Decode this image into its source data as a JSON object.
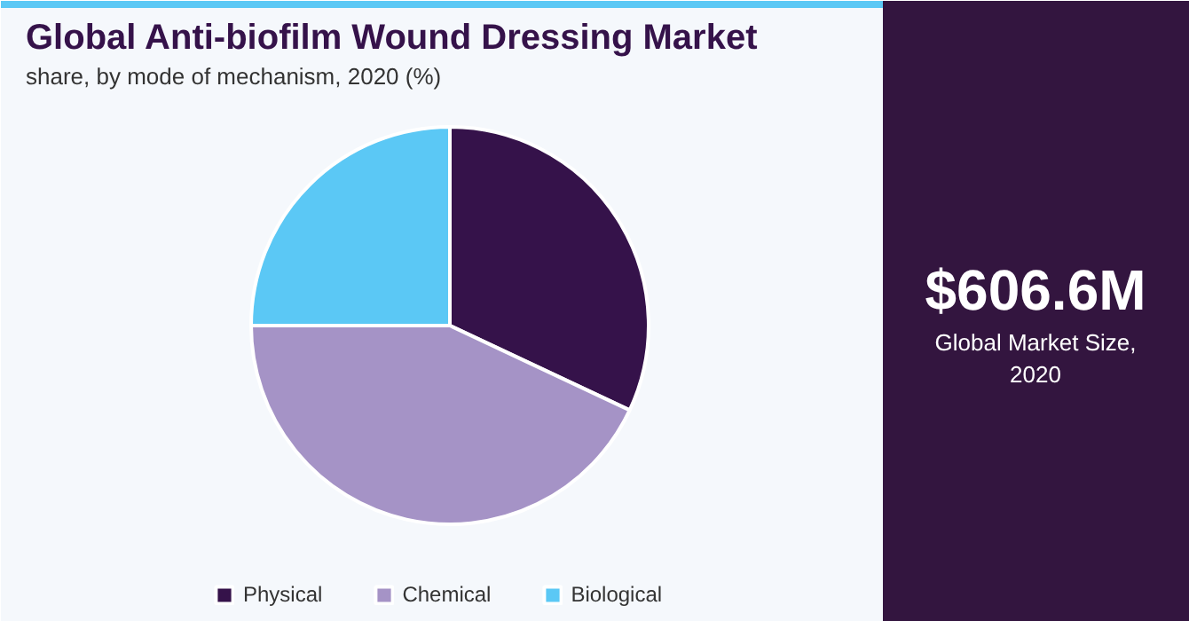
{
  "chart_data": {
    "type": "pie",
    "title": "Global Anti-biofilm Wound Dressing Market",
    "subtitle": "share, by mode of mechanism, 2020 (%)",
    "categories": [
      "Physical",
      "Chemical",
      "Biological"
    ],
    "values": [
      32,
      43,
      25
    ],
    "colors": [
      "#35124a",
      "#a593c6",
      "#5bc8f5"
    ],
    "legend": "bottom",
    "annotations": [
      "$606.6M",
      "Global Market Size,\n2020"
    ]
  }
}
